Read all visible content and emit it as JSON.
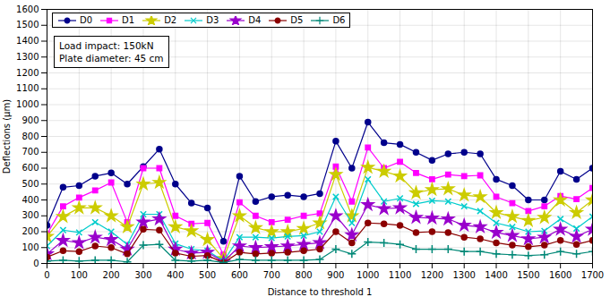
{
  "chart_data": {
    "type": "line",
    "xlabel": "Distance to threshold 1",
    "ylabel": "Deflections (μm)",
    "annotation": "Load impact: 150kN\nPlate diameter: 45 cm",
    "xlim": [
      0,
      1700
    ],
    "ylim": [
      0,
      1600
    ],
    "xticks": [
      0,
      100,
      200,
      300,
      400,
      500,
      600,
      700,
      800,
      900,
      1000,
      1100,
      1200,
      1300,
      1400,
      1500,
      1600,
      1700
    ],
    "yticks": [
      0,
      100,
      200,
      300,
      400,
      500,
      600,
      700,
      800,
      900,
      1000,
      1100,
      1200,
      1300,
      1400,
      1500,
      1600
    ],
    "grid": true,
    "legend": "upper left",
    "x": [
      0,
      50,
      100,
      150,
      200,
      250,
      300,
      350,
      400,
      450,
      500,
      550,
      600,
      650,
      700,
      750,
      800,
      850,
      900,
      950,
      1000,
      1050,
      1100,
      1150,
      1200,
      1250,
      1300,
      1350,
      1400,
      1450,
      1500,
      1550,
      1600,
      1650,
      1700
    ],
    "series": [
      {
        "name": "D0",
        "color": "#00008B",
        "marker": "circle",
        "values": [
          240,
          480,
          490,
          550,
          570,
          500,
          610,
          720,
          500,
          380,
          350,
          140,
          550,
          390,
          420,
          430,
          420,
          440,
          770,
          600,
          890,
          760,
          750,
          700,
          650,
          690,
          700,
          690,
          530,
          490,
          400,
          400,
          580,
          530,
          600
        ]
      },
      {
        "name": "D1",
        "color": "#FF00FF",
        "marker": "square",
        "values": [
          185,
          360,
          415,
          460,
          510,
          260,
          600,
          600,
          300,
          250,
          255,
          55,
          385,
          300,
          260,
          275,
          300,
          315,
          610,
          390,
          730,
          600,
          640,
          570,
          530,
          560,
          550,
          555,
          420,
          380,
          330,
          360,
          425,
          405,
          475
        ]
      },
      {
        "name": "D2",
        "color": "#CCCC00",
        "marker": "star",
        "values": [
          170,
          295,
          350,
          350,
          300,
          230,
          500,
          510,
          230,
          205,
          150,
          30,
          300,
          225,
          200,
          200,
          220,
          255,
          560,
          300,
          605,
          580,
          550,
          445,
          465,
          470,
          430,
          420,
          320,
          295,
          270,
          290,
          400,
          320,
          400
        ]
      },
      {
        "name": "D3",
        "color": "#00CCCC",
        "marker": "times",
        "values": [
          110,
          210,
          195,
          260,
          200,
          120,
          310,
          310,
          125,
          90,
          80,
          15,
          165,
          165,
          160,
          170,
          175,
          200,
          420,
          255,
          530,
          390,
          410,
          375,
          395,
          390,
          360,
          330,
          255,
          230,
          200,
          205,
          280,
          220,
          295
        ]
      },
      {
        "name": "D4",
        "color": "#9900CC",
        "marker": "star",
        "values": [
          60,
          145,
          130,
          165,
          150,
          90,
          260,
          280,
          90,
          65,
          70,
          10,
          110,
          100,
          105,
          110,
          120,
          130,
          300,
          180,
          370,
          345,
          350,
          290,
          285,
          280,
          240,
          230,
          195,
          175,
          155,
          165,
          215,
          170,
          215
        ]
      },
      {
        "name": "D5",
        "color": "#8B0000",
        "marker": "circle",
        "values": [
          40,
          80,
          75,
          110,
          100,
          60,
          215,
          210,
          65,
          45,
          50,
          5,
          70,
          60,
          65,
          70,
          80,
          90,
          200,
          130,
          255,
          250,
          240,
          195,
          200,
          195,
          165,
          155,
          130,
          115,
          105,
          115,
          145,
          120,
          145
        ]
      },
      {
        "name": "D6",
        "color": "#008877",
        "marker": "plus",
        "values": [
          15,
          20,
          15,
          20,
          20,
          10,
          115,
          120,
          20,
          15,
          20,
          5,
          25,
          20,
          20,
          20,
          20,
          25,
          90,
          60,
          135,
          130,
          120,
          90,
          90,
          90,
          75,
          75,
          60,
          55,
          50,
          55,
          75,
          60,
          75
        ]
      }
    ]
  }
}
